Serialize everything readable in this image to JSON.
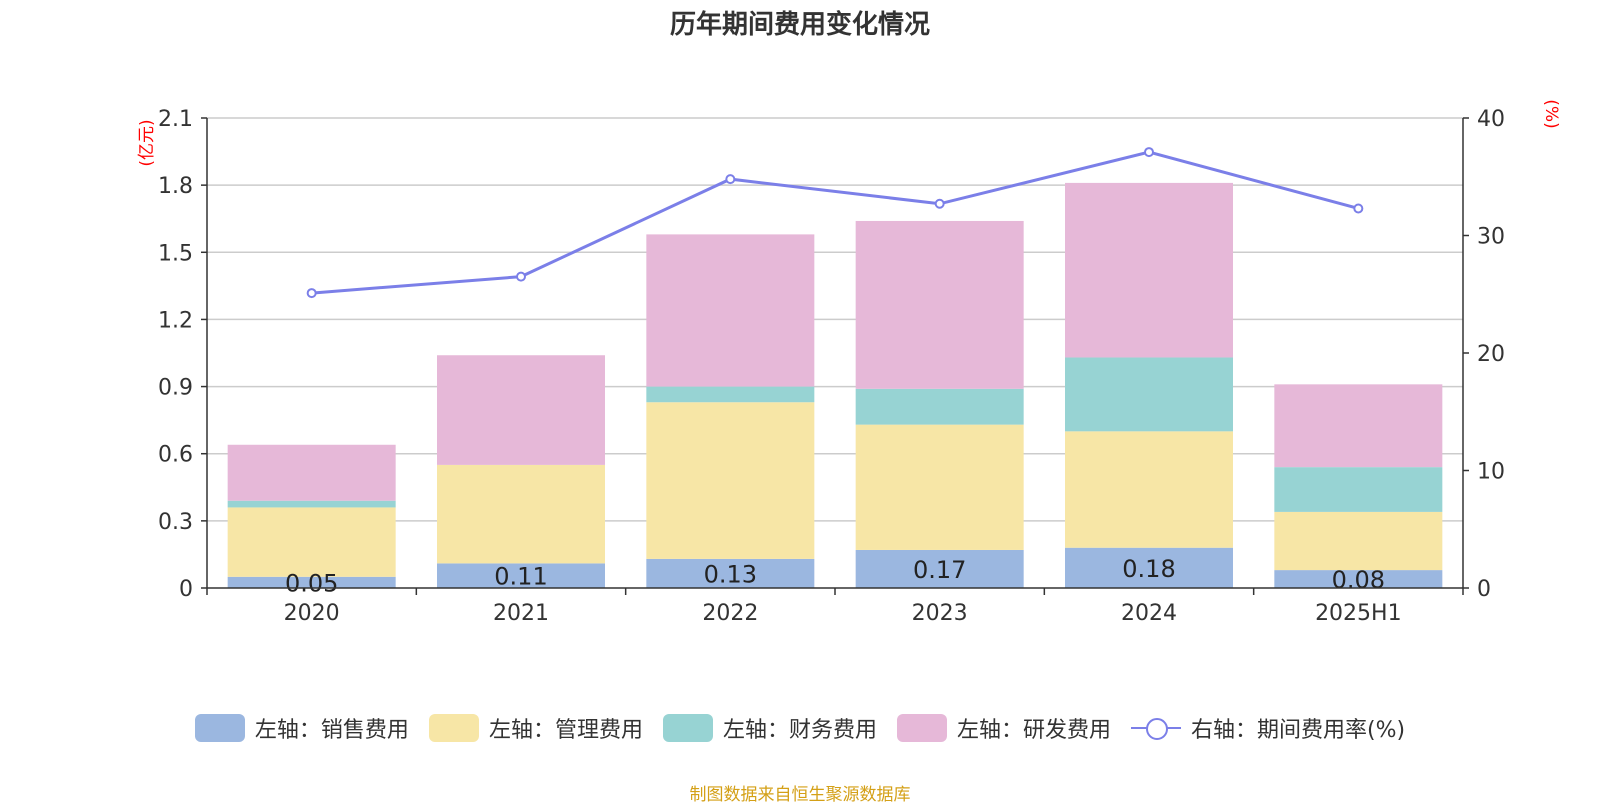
{
  "title": "历年期间费用变化情况",
  "source": "制图数据来自恒生聚源数据库",
  "chart_data": {
    "type": "bar",
    "stacked": true,
    "categories": [
      "2020",
      "2021",
      "2022",
      "2023",
      "2024",
      "2025H1"
    ],
    "left_axis": {
      "label": "(亿元)",
      "ylim": [
        0,
        2.1
      ],
      "ticks": [
        0,
        0.3,
        0.6,
        0.9,
        1.2,
        1.5,
        1.8,
        2.1
      ]
    },
    "right_axis": {
      "label": "(%)",
      "ylim": [
        0,
        40
      ],
      "ticks": [
        0,
        10,
        20,
        30,
        40
      ]
    },
    "grid": true,
    "series": [
      {
        "name": "左轴：销售费用",
        "axis": "left",
        "type": "bar",
        "color": "#9bb7e0",
        "values": [
          0.05,
          0.11,
          0.13,
          0.17,
          0.18,
          0.08
        ]
      },
      {
        "name": "左轴：管理费用",
        "axis": "left",
        "type": "bar",
        "color": "#f7e6a6",
        "values": [
          0.31,
          0.44,
          0.7,
          0.56,
          0.52,
          0.26
        ]
      },
      {
        "name": "左轴：财务费用",
        "axis": "left",
        "type": "bar",
        "color": "#97d3d3",
        "values": [
          0.03,
          0.0,
          0.07,
          0.16,
          0.33,
          0.2
        ]
      },
      {
        "name": "左轴：研发费用",
        "axis": "left",
        "type": "bar",
        "color": "#e6b8d8",
        "values": [
          0.25,
          0.49,
          0.68,
          0.75,
          0.78,
          0.37
        ]
      },
      {
        "name": "右轴：期间费用率(%)",
        "axis": "right",
        "type": "line",
        "color": "#7b7fe8",
        "values": [
          25.1,
          26.5,
          34.8,
          32.7,
          37.1,
          32.3
        ]
      }
    ],
    "data_labels": {
      "series": "左轴：销售费用",
      "values": [
        "0.05",
        "0.11",
        "0.13",
        "0.17",
        "0.18",
        "0.08"
      ]
    },
    "legend_position": "bottom"
  }
}
